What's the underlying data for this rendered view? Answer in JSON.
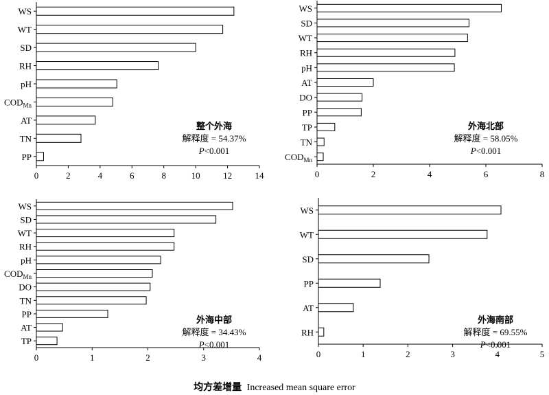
{
  "figure": {
    "xlabel_cn": "均方差增量",
    "xlabel_en": "Increased mean square error"
  },
  "chart_data": [
    {
      "type": "bar",
      "orientation": "horizontal",
      "panel": "top-left",
      "categories": [
        "WS",
        "WT",
        "SD",
        "RH",
        "pH",
        "COD_Mn",
        "AT",
        "TN",
        "PP"
      ],
      "values": [
        12.4,
        11.7,
        10.0,
        7.65,
        5.05,
        4.8,
        3.7,
        2.8,
        0.45
      ],
      "xlim": [
        0,
        14
      ],
      "xticks": [
        0,
        2,
        4,
        6,
        8,
        10,
        12,
        14
      ],
      "annotation": {
        "title": "整个外海",
        "explained": "解释度 = 54.37%",
        "p_italic": "P",
        "p_rest": "<0.001"
      }
    },
    {
      "type": "bar",
      "orientation": "horizontal",
      "panel": "top-right",
      "categories": [
        "WS",
        "SD",
        "WT",
        "RH",
        "pH",
        "AT",
        "DO",
        "PP",
        "TP",
        "TN",
        "COD_Mn"
      ],
      "values": [
        6.55,
        5.4,
        5.35,
        4.9,
        4.88,
        2.0,
        1.6,
        1.57,
        0.63,
        0.25,
        0.22
      ],
      "xlim": [
        0,
        8
      ],
      "xticks": [
        0,
        2,
        4,
        6,
        8
      ],
      "annotation": {
        "title": "外海北部",
        "explained": "解释度 = 58.05%",
        "p_italic": "P",
        "p_rest": "<0.001"
      }
    },
    {
      "type": "bar",
      "orientation": "horizontal",
      "panel": "bottom-left",
      "categories": [
        "WS",
        "SD",
        "WT",
        "RH",
        "pH",
        "COD_Mn",
        "DO",
        "TN",
        "PP",
        "AT",
        "TP"
      ],
      "values": [
        3.52,
        3.22,
        2.47,
        2.47,
        2.23,
        2.08,
        2.04,
        1.97,
        1.28,
        0.47,
        0.37
      ],
      "xlim": [
        0,
        4
      ],
      "xticks": [
        0,
        1,
        2,
        3,
        4
      ],
      "annotation": {
        "title": "外海中部",
        "explained": "解释度 = 34.43%",
        "p_italic": "P",
        "p_rest": "<0.001"
      }
    },
    {
      "type": "bar",
      "orientation": "horizontal",
      "panel": "bottom-right",
      "categories": [
        "WS",
        "WT",
        "SD",
        "PP",
        "AT",
        "RH"
      ],
      "values": [
        4.08,
        3.77,
        2.47,
        1.38,
        0.78,
        0.12
      ],
      "xlim": [
        0,
        5
      ],
      "xticks": [
        0,
        1,
        2,
        3,
        4,
        5
      ],
      "annotation": {
        "title": "外海南部",
        "explained": "解释度 = 69.55%",
        "p_italic": "P",
        "p_rest": "<0.001"
      }
    }
  ]
}
